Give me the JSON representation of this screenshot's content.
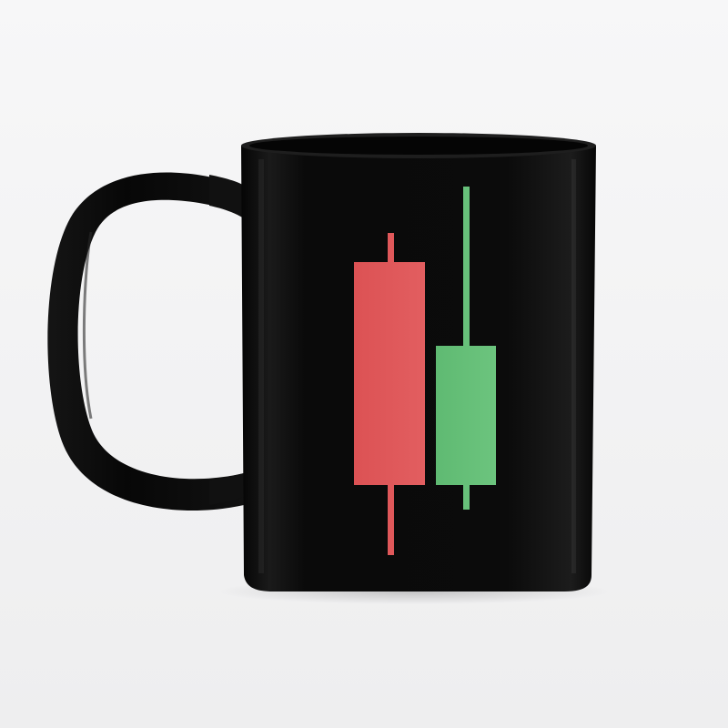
{
  "colors": {
    "background": "#f4f4f5",
    "mug_body": "#0d0d0d",
    "mug_rim": "#1e1e1e",
    "mug_inner": "#050505",
    "bearish_candle": "#e0585a",
    "bullish_candle": "#67c07a"
  },
  "mug": {
    "color_name": "black",
    "has_handle": true
  },
  "print": {
    "motif": "candlestick-pair",
    "candles": [
      {
        "name": "bearish-candle",
        "direction": "down",
        "color_key": "bearish_candle"
      },
      {
        "name": "bullish-candle",
        "direction": "up",
        "color_key": "bullish_candle"
      }
    ]
  }
}
